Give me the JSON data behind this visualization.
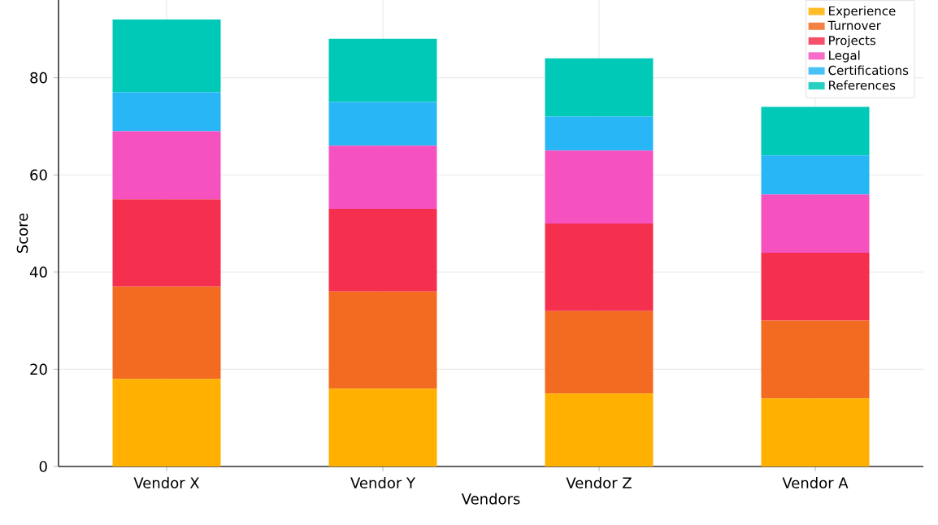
{
  "chart_data": {
    "type": "bar",
    "stacked": true,
    "xlabel": "Vendors",
    "ylabel": "Score",
    "categories": [
      "Vendor X",
      "Vendor Y",
      "Vendor Z",
      "Vendor A"
    ],
    "series": [
      {
        "name": "Experience",
        "color": "#ffb000",
        "values": [
          18,
          16,
          15,
          14
        ]
      },
      {
        "name": "Turnover",
        "color": "#f26b21",
        "values": [
          19,
          20,
          17,
          16
        ]
      },
      {
        "name": "Projects",
        "color": "#f5304f",
        "values": [
          18,
          17,
          18,
          14
        ]
      },
      {
        "name": "Legal",
        "color": "#f552c0",
        "values": [
          14,
          13,
          15,
          12
        ]
      },
      {
        "name": "Certifications",
        "color": "#29b6f6",
        "values": [
          8,
          9,
          7,
          8
        ]
      },
      {
        "name": "References",
        "color": "#00c9b7",
        "values": [
          15,
          13,
          12,
          10
        ]
      }
    ],
    "ylim": [
      0,
      96
    ],
    "yticks": [
      0,
      20,
      40,
      60,
      80
    ],
    "grid": true,
    "legend": "top right"
  }
}
